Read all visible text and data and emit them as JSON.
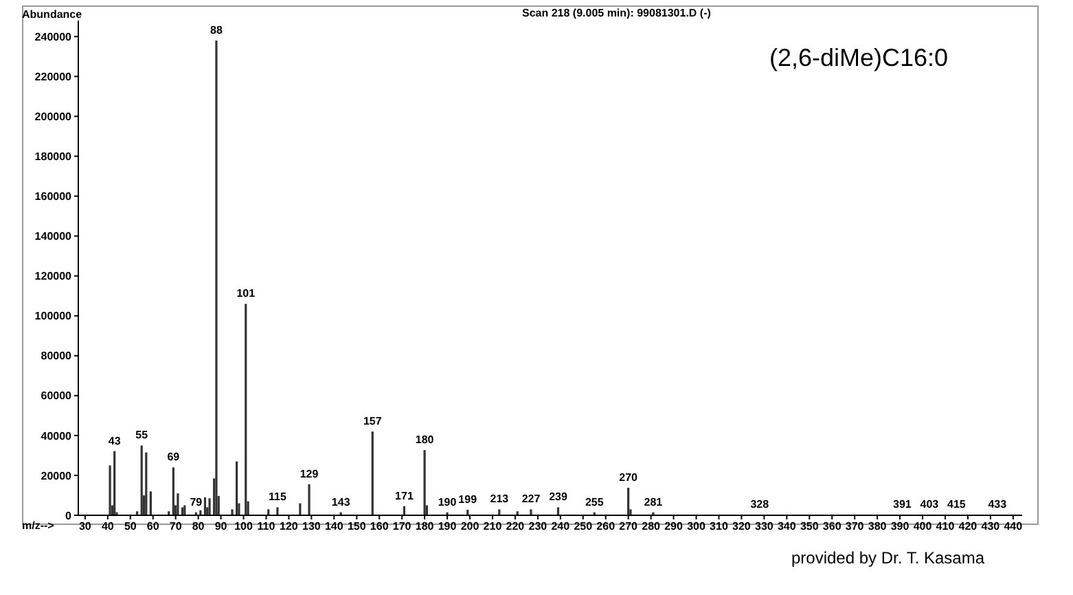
{
  "chart_data": {
    "type": "bar",
    "title": "Scan 218 (9.005 min): 99081301.D (-)",
    "xlabel": "m/z-->",
    "ylabel": "Abundance",
    "x": [
      41,
      42,
      43,
      44,
      53,
      55,
      56,
      57,
      59,
      67,
      69,
      70,
      71,
      73,
      74,
      79,
      81,
      83,
      84,
      85,
      87,
      88,
      89,
      95,
      97,
      98,
      101,
      102,
      111,
      115,
      125,
      129,
      143,
      157,
      171,
      180,
      181,
      190,
      199,
      213,
      221,
      227,
      239,
      255,
      270,
      271,
      281,
      328,
      391,
      403,
      415,
      433
    ],
    "series": [
      {
        "color": "#333333",
        "values": [
          25000,
          5000,
          32200,
          1500,
          2000,
          35000,
          10000,
          31500,
          12000,
          2000,
          24000,
          5000,
          11000,
          4000,
          5000,
          1500,
          2500,
          9000,
          4000,
          8500,
          18500,
          238000,
          9700,
          3000,
          27000,
          6000,
          106000,
          7000,
          3000,
          4000,
          6000,
          15600,
          1500,
          42000,
          4600,
          32700,
          5000,
          1500,
          2800,
          3000,
          2000,
          3000,
          4000,
          1500,
          13800,
          3000,
          1500,
          200,
          200,
          200,
          200,
          200
        ]
      }
    ],
    "xlim": [
      27,
      444
    ],
    "xticks": [
      30,
      40,
      50,
      60,
      70,
      80,
      90,
      100,
      110,
      120,
      130,
      140,
      150,
      160,
      170,
      180,
      190,
      200,
      210,
      220,
      230,
      240,
      250,
      260,
      270,
      280,
      290,
      300,
      310,
      320,
      330,
      340,
      350,
      360,
      370,
      380,
      390,
      400,
      410,
      420,
      430,
      440
    ],
    "ylim": [
      0,
      248000
    ],
    "yticks": [
      0,
      20000,
      40000,
      60000,
      80000,
      100000,
      120000,
      140000,
      160000,
      180000,
      200000,
      220000,
      240000
    ],
    "grid": false,
    "legend": false,
    "annotations": [
      "(2,6-diMe)C16:0",
      "provided by Dr. T. Kasama",
      {
        "text": "43",
        "x": 43,
        "y": 32200
      },
      {
        "text": "55",
        "x": 55,
        "y": 35000
      },
      {
        "text": "69",
        "x": 69,
        "y": 24000
      },
      {
        "text": "79",
        "x": 79,
        "y": 1500
      },
      {
        "text": "88",
        "x": 88,
        "y": 238000
      },
      {
        "text": "101",
        "x": 101,
        "y": 106000
      },
      {
        "text": "115",
        "x": 115,
        "y": 4000
      },
      {
        "text": "129",
        "x": 129,
        "y": 15600
      },
      {
        "text": "143",
        "x": 143,
        "y": 1500
      },
      {
        "text": "157",
        "x": 157,
        "y": 42000
      },
      {
        "text": "171",
        "x": 171,
        "y": 4600
      },
      {
        "text": "180",
        "x": 180,
        "y": 32700
      },
      {
        "text": "190",
        "x": 190,
        "y": 1500
      },
      {
        "text": "199",
        "x": 199,
        "y": 2800
      },
      {
        "text": "213",
        "x": 213,
        "y": 3000
      },
      {
        "text": "227",
        "x": 227,
        "y": 3000
      },
      {
        "text": "239",
        "x": 239,
        "y": 4000
      },
      {
        "text": "255",
        "x": 255,
        "y": 1500
      },
      {
        "text": "270",
        "x": 270,
        "y": 13800
      },
      {
        "text": "281",
        "x": 281,
        "y": 1500
      },
      {
        "text": "328",
        "x": 328,
        "y": 200
      },
      {
        "text": "391",
        "x": 391,
        "y": 200
      },
      {
        "text": "403",
        "x": 403,
        "y": 200
      },
      {
        "text": "415",
        "x": 415,
        "y": 200
      },
      {
        "text": "433",
        "x": 433,
        "y": 200
      }
    ]
  }
}
